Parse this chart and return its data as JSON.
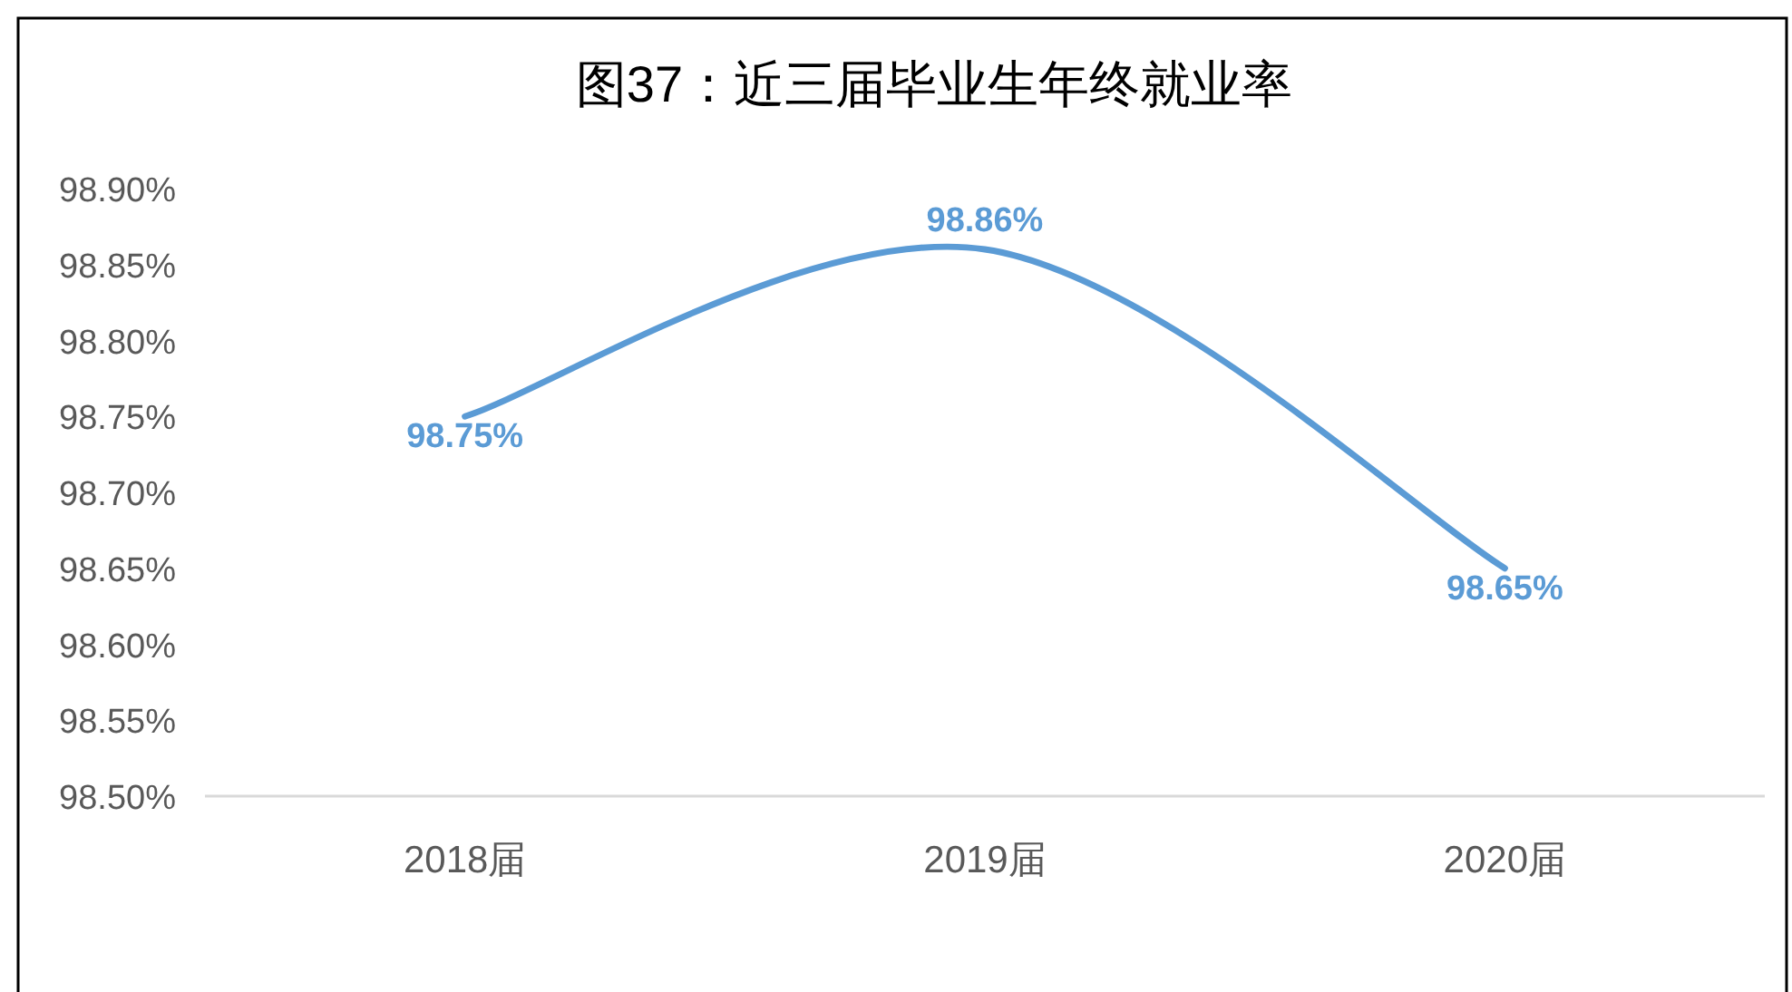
{
  "chart_data": {
    "type": "line",
    "title": "图37：近三届毕业生年终就业率",
    "categories": [
      "2018届",
      "2019届",
      "2020届"
    ],
    "series": [
      {
        "color": "#5b9bd5",
        "values": [
          98.75,
          98.86,
          98.65
        ],
        "value_labels": [
          "98.75%",
          "98.86%",
          "98.65%"
        ]
      }
    ],
    "ylim": [
      98.5,
      98.9
    ],
    "yticks": [
      {
        "value": 98.5,
        "label": "98.50%"
      },
      {
        "value": 98.55,
        "label": "98.55%"
      },
      {
        "value": 98.6,
        "label": "98.60%"
      },
      {
        "value": 98.65,
        "label": "98.65%"
      },
      {
        "value": 98.7,
        "label": "98.70%"
      },
      {
        "value": 98.75,
        "label": "98.75%"
      },
      {
        "value": 98.8,
        "label": "98.80%"
      },
      {
        "value": 98.85,
        "label": "98.85%"
      },
      {
        "value": 98.9,
        "label": "98.90%"
      }
    ],
    "marker": "none",
    "line_style": "solid"
  }
}
